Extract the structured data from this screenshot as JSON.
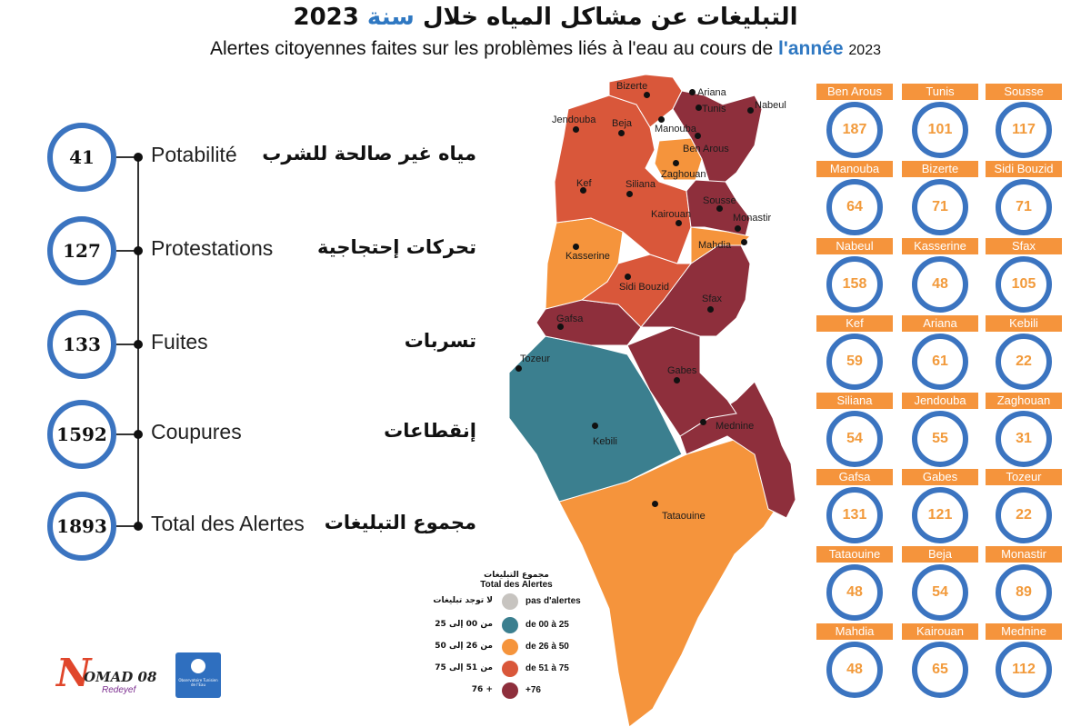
{
  "header": {
    "title_ar_main": "التبليغات عن مشاكل المياه خلال",
    "title_ar_highlight": "سنة",
    "title_ar_year": "2023",
    "title_fr_main": "Alertes citoyennes faites sur les problèmes liés à l'eau au cours de",
    "title_fr_highlight": "l'année",
    "title_fr_year": "2023"
  },
  "stats": [
    {
      "value": "41",
      "label_fr": "Potabilité",
      "label_ar": "مياه غير صالحة للشرب"
    },
    {
      "value": "127",
      "label_fr": "Protestations",
      "label_ar": "تحركات إحتجاجية"
    },
    {
      "value": "133",
      "label_fr": "Fuites",
      "label_ar": "تسربات"
    },
    {
      "value": "1592",
      "label_fr": "Coupures",
      "label_ar": "إنقطاعات"
    },
    {
      "value": "1893",
      "label_fr": "Total des Alertes",
      "label_ar": "مجموع التبليغات"
    }
  ],
  "map": {
    "cities": [
      "Bizerte",
      "Ariana",
      "Tunis",
      "Nabeul",
      "Jendouba",
      "Beja",
      "Manouba",
      "Ben Arous",
      "Zaghouan",
      "Kef",
      "Siliana",
      "Sousse",
      "Kairouan",
      "Monastir",
      "Mahdia",
      "Kasserine",
      "Sidi Bouzid",
      "Sfax",
      "Gafsa",
      "Tozeur",
      "Gabes",
      "Kebili",
      "Mednine",
      "Tataouine"
    ]
  },
  "legend": {
    "title_ar": "مجموع التبليغات",
    "title_fr": "Total des Alertes",
    "items": [
      {
        "ar": "لا توجد تبليغات",
        "fr": "pas d'alertes",
        "color": "#c7c4c0"
      },
      {
        "ar": "من 00 إلى 25",
        "fr": "de 00 à 25",
        "color": "#3b7f8f"
      },
      {
        "ar": "من 26 إلى 50",
        "fr": "de 26 à 50",
        "color": "#f5943c"
      },
      {
        "ar": "من 51 إلى 75",
        "fr": "de 51 à 75",
        "color": "#d9573a"
      },
      {
        "ar": "+ 76",
        "fr": "+76",
        "color": "#8e2f3c"
      }
    ]
  },
  "logos": {
    "nomad_main": "OMAD 08",
    "nomad_sub": "Redeyef",
    "observatory": "Observatoire Tunisien de l'Eau"
  },
  "governorates": [
    {
      "name": "Ben Arous",
      "value": "187"
    },
    {
      "name": "Tunis",
      "value": "101"
    },
    {
      "name": "Sousse",
      "value": "117"
    },
    {
      "name": "Manouba",
      "value": "64"
    },
    {
      "name": "Bizerte",
      "value": "71"
    },
    {
      "name": "Sidi Bouzid",
      "value": "71"
    },
    {
      "name": "Nabeul",
      "value": "158"
    },
    {
      "name": "Kasserine",
      "value": "48"
    },
    {
      "name": "Sfax",
      "value": "105"
    },
    {
      "name": "Kef",
      "value": "59"
    },
    {
      "name": "Ariana",
      "value": "61"
    },
    {
      "name": "Kebili",
      "value": "22"
    },
    {
      "name": "Siliana",
      "value": "54"
    },
    {
      "name": "Jendouba",
      "value": "55"
    },
    {
      "name": "Zaghouan",
      "value": "31"
    },
    {
      "name": "Gafsa",
      "value": "131"
    },
    {
      "name": "Gabes",
      "value": "121"
    },
    {
      "name": "Tozeur",
      "value": "22"
    },
    {
      "name": "Tataouine",
      "value": "48"
    },
    {
      "name": "Beja",
      "value": "54"
    },
    {
      "name": "Monastir",
      "value": "89"
    },
    {
      "name": "Mahdia",
      "value": "48"
    },
    {
      "name": "Kairouan",
      "value": "65"
    },
    {
      "name": "Mednine",
      "value": "112"
    }
  ]
}
